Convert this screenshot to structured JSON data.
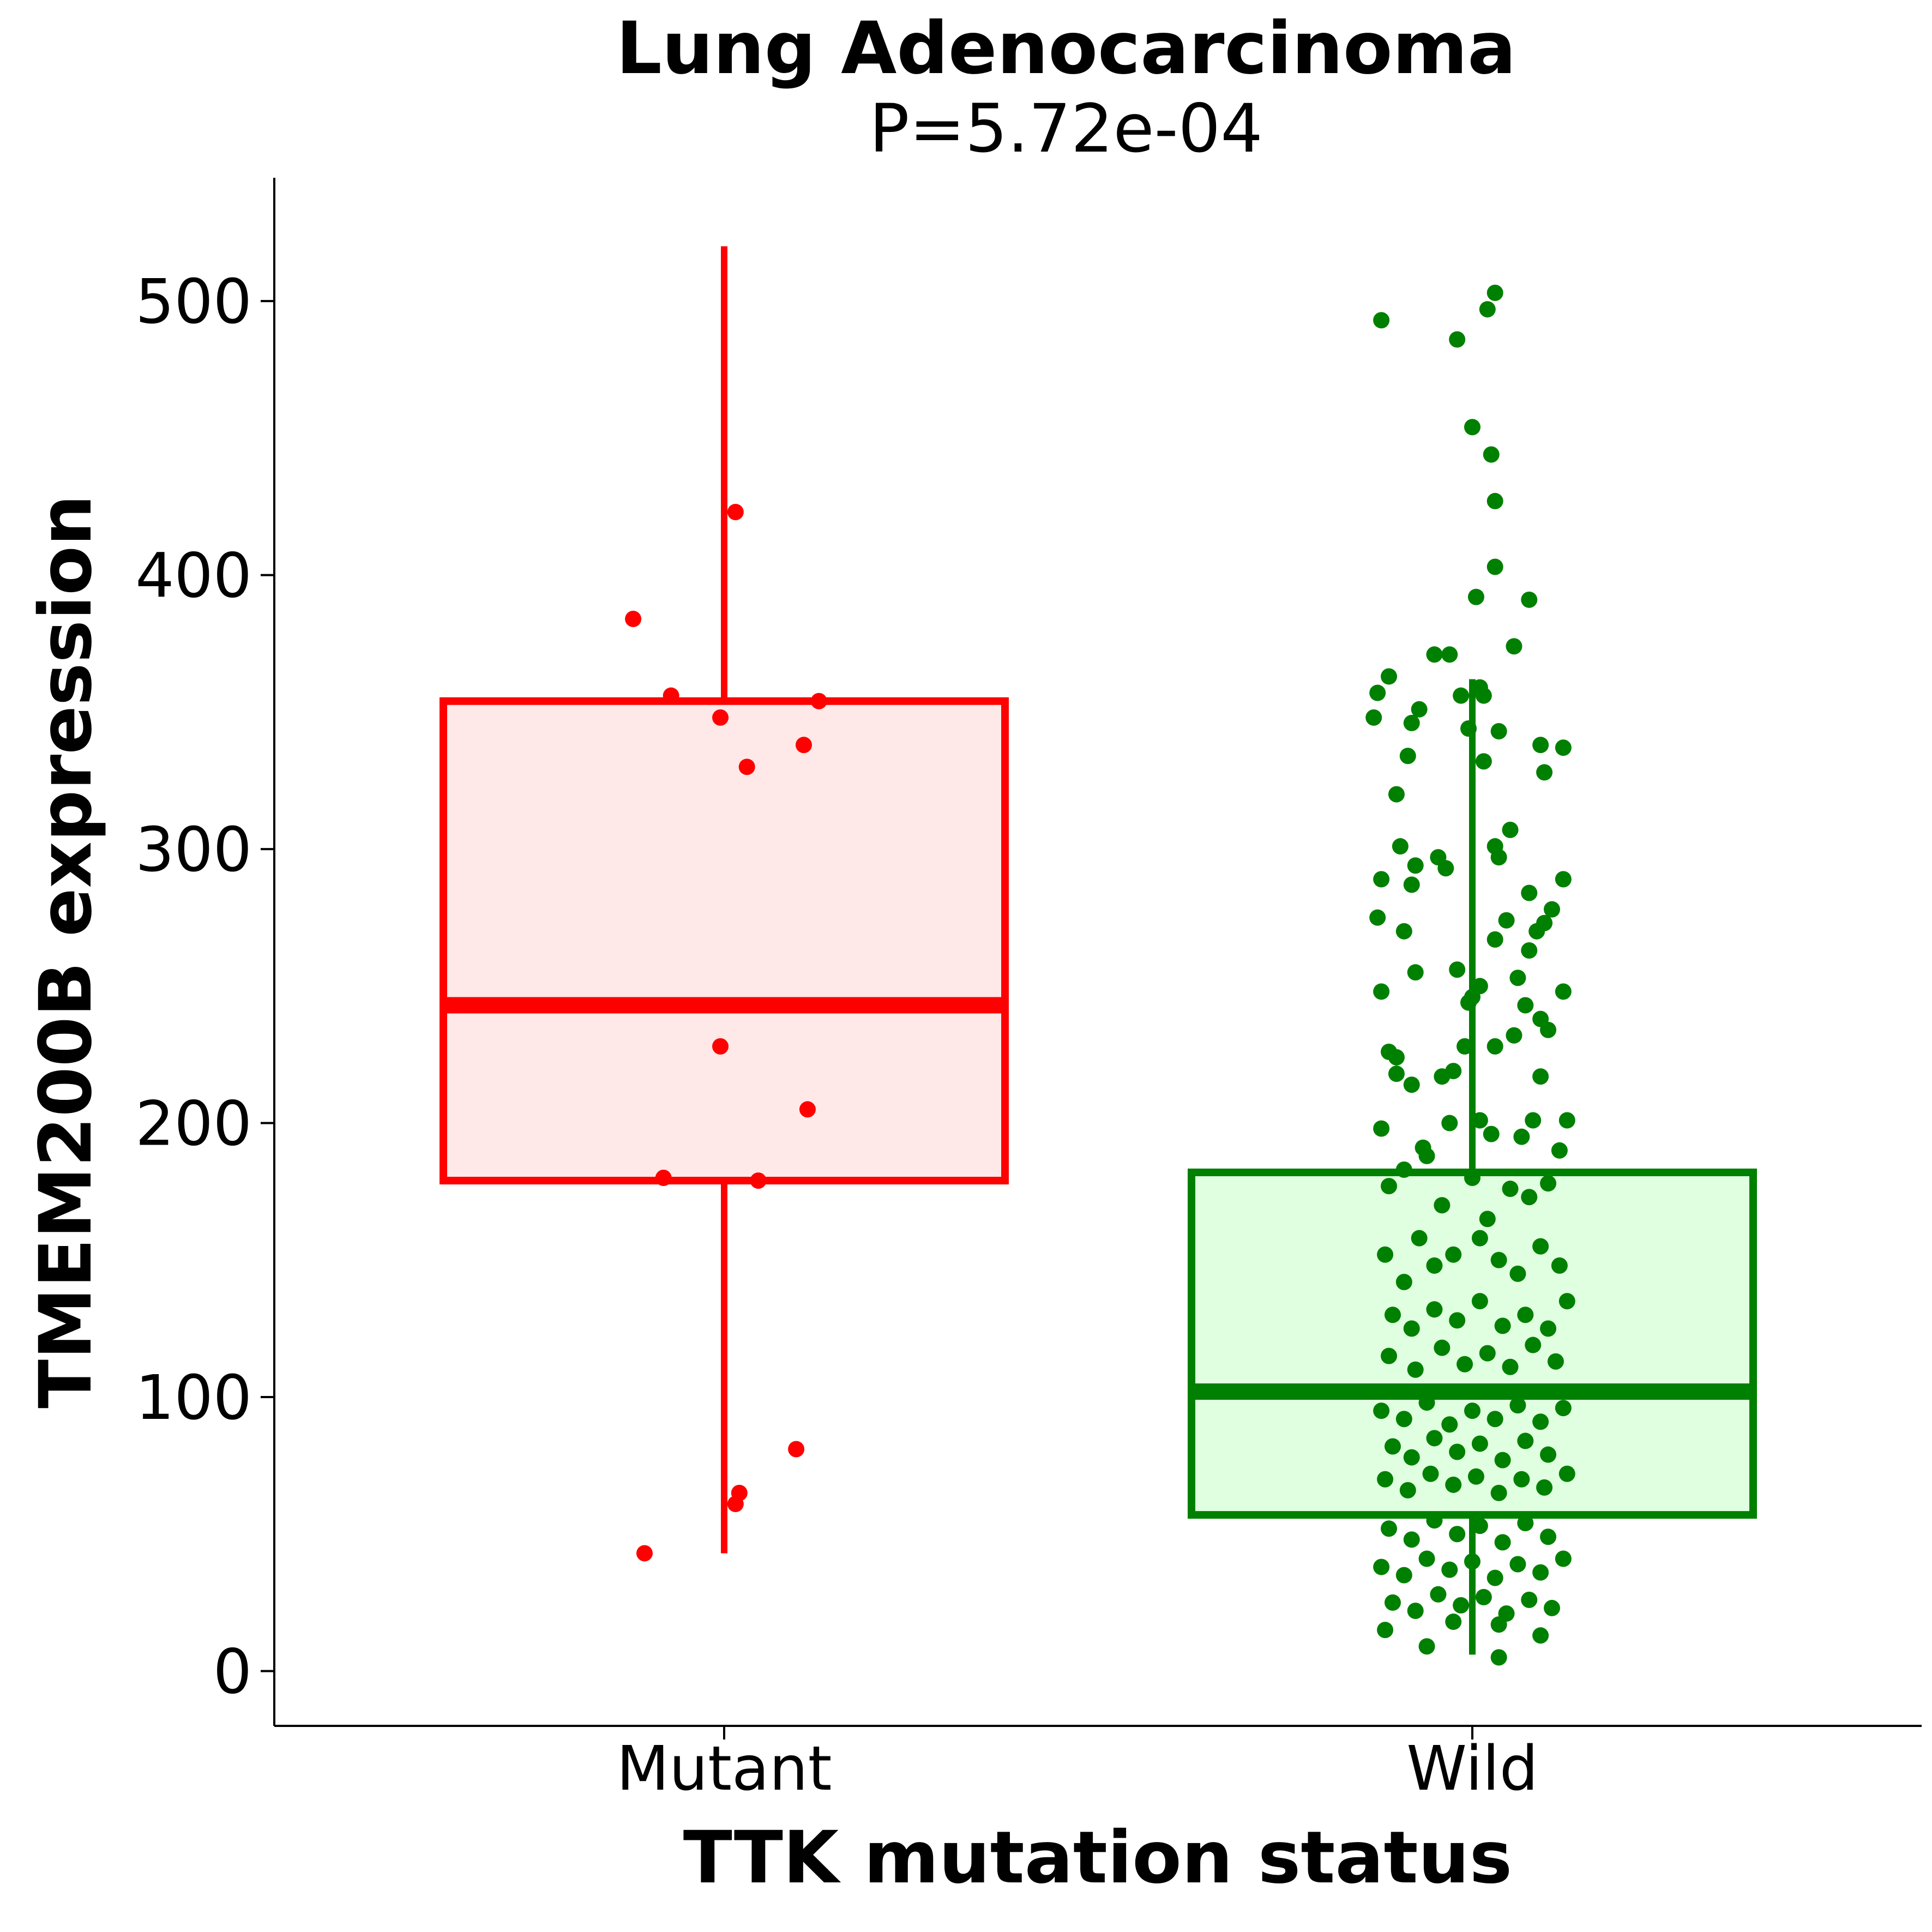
{
  "chart_data": {
    "type": "boxplot",
    "title": "Lung Adenocarcinoma",
    "subtitle": "P=5.72e-04",
    "xlabel": "TTK mutation status",
    "ylabel": "TMEM200B expression",
    "categories": [
      "Mutant",
      "Wild"
    ],
    "ylim": [
      -20,
      545
    ],
    "yticks": [
      0,
      100,
      200,
      300,
      400,
      500
    ],
    "ytick_labels": [
      "0",
      "100",
      "200",
      "300",
      "400",
      "500"
    ],
    "grid": false,
    "legend": "none",
    "colors": {
      "Mutant": {
        "line": "#ff0000",
        "fill": "#ffe8e8"
      },
      "Wild": {
        "line": "#008000",
        "fill": "#e0ffe0"
      },
      "axis": "#000000"
    },
    "boxes": [
      {
        "group": "Mutant",
        "whisker_low": 43,
        "q1": 179,
        "median": 243,
        "q3": 354,
        "whisker_high": 520
      },
      {
        "group": "Wild",
        "whisker_low": 6,
        "q1": 57,
        "median": 102,
        "q3": 182,
        "whisker_high": 362
      }
    ],
    "points": {
      "Mutant": [
        {
          "x": -0.24,
          "y": 384
        },
        {
          "x": -0.14,
          "y": 356
        },
        {
          "x": -0.01,
          "y": 348
        },
        {
          "x": 0.03,
          "y": 423
        },
        {
          "x": 0.06,
          "y": 330
        },
        {
          "x": 0.21,
          "y": 338
        },
        {
          "x": 0.25,
          "y": 354
        },
        {
          "x": -0.01,
          "y": 228
        },
        {
          "x": 0.22,
          "y": 205
        },
        {
          "x": -0.16,
          "y": 180
        },
        {
          "x": 0.09,
          "y": 179
        },
        {
          "x": 0.19,
          "y": 81
        },
        {
          "x": 0.03,
          "y": 61
        },
        {
          "x": 0.04,
          "y": 65
        },
        {
          "x": -0.21,
          "y": 43
        }
      ],
      "Wild": [
        {
          "x": -0.24,
          "y": 493
        },
        {
          "x": -0.04,
          "y": 486
        },
        {
          "x": 0.04,
          "y": 497
        },
        {
          "x": 0.06,
          "y": 503
        },
        {
          "x": 0.0,
          "y": 454
        },
        {
          "x": 0.05,
          "y": 444
        },
        {
          "x": 0.06,
          "y": 427
        },
        {
          "x": 0.06,
          "y": 403
        },
        {
          "x": 0.01,
          "y": 392
        },
        {
          "x": 0.15,
          "y": 391
        },
        {
          "x": 0.11,
          "y": 374
        },
        {
          "x": -0.1,
          "y": 371
        },
        {
          "x": -0.06,
          "y": 371
        },
        {
          "x": -0.22,
          "y": 363
        },
        {
          "x": -0.25,
          "y": 357
        },
        {
          "x": -0.26,
          "y": 348
        },
        {
          "x": -0.16,
          "y": 346
        },
        {
          "x": -0.14,
          "y": 351
        },
        {
          "x": -0.03,
          "y": 356
        },
        {
          "x": 0.02,
          "y": 359
        },
        {
          "x": 0.03,
          "y": 356
        },
        {
          "x": 0.07,
          "y": 343
        },
        {
          "x": -0.01,
          "y": 344
        },
        {
          "x": -0.17,
          "y": 334
        },
        {
          "x": -0.2,
          "y": 320
        },
        {
          "x": 0.03,
          "y": 332
        },
        {
          "x": 0.18,
          "y": 338
        },
        {
          "x": 0.24,
          "y": 337
        },
        {
          "x": 0.19,
          "y": 328
        },
        {
          "x": -0.24,
          "y": 289
        },
        {
          "x": -0.19,
          "y": 301
        },
        {
          "x": -0.15,
          "y": 294
        },
        {
          "x": -0.09,
          "y": 297
        },
        {
          "x": -0.07,
          "y": 293
        },
        {
          "x": -0.16,
          "y": 287
        },
        {
          "x": 0.06,
          "y": 301
        },
        {
          "x": 0.1,
          "y": 307
        },
        {
          "x": 0.07,
          "y": 297
        },
        {
          "x": 0.15,
          "y": 284
        },
        {
          "x": 0.21,
          "y": 278
        },
        {
          "x": 0.24,
          "y": 289
        },
        {
          "x": -0.25,
          "y": 275
        },
        {
          "x": -0.18,
          "y": 270
        },
        {
          "x": 0.06,
          "y": 267
        },
        {
          "x": 0.09,
          "y": 274
        },
        {
          "x": 0.15,
          "y": 263
        },
        {
          "x": 0.17,
          "y": 270
        },
        {
          "x": 0.19,
          "y": 273
        },
        {
          "x": -0.24,
          "y": 248
        },
        {
          "x": -0.15,
          "y": 255
        },
        {
          "x": -0.04,
          "y": 256
        },
        {
          "x": 0.02,
          "y": 250
        },
        {
          "x": 0.0,
          "y": 246
        },
        {
          "x": -0.01,
          "y": 244
        },
        {
          "x": 0.12,
          "y": 253
        },
        {
          "x": 0.14,
          "y": 243
        },
        {
          "x": 0.18,
          "y": 238
        },
        {
          "x": 0.24,
          "y": 248
        },
        {
          "x": -0.22,
          "y": 226
        },
        {
          "x": -0.2,
          "y": 224
        },
        {
          "x": -0.2,
          "y": 218
        },
        {
          "x": -0.16,
          "y": 214
        },
        {
          "x": -0.08,
          "y": 217
        },
        {
          "x": -0.05,
          "y": 219
        },
        {
          "x": -0.02,
          "y": 228
        },
        {
          "x": 0.06,
          "y": 228
        },
        {
          "x": 0.11,
          "y": 232
        },
        {
          "x": 0.2,
          "y": 234
        },
        {
          "x": 0.18,
          "y": 217
        },
        {
          "x": -0.24,
          "y": 198
        },
        {
          "x": -0.13,
          "y": 191
        },
        {
          "x": -0.06,
          "y": 200
        },
        {
          "x": 0.02,
          "y": 201
        },
        {
          "x": 0.05,
          "y": 196
        },
        {
          "x": 0.13,
          "y": 195
        },
        {
          "x": 0.16,
          "y": 201
        },
        {
          "x": 0.23,
          "y": 190
        },
        {
          "x": 0.25,
          "y": 201
        },
        {
          "x": -0.22,
          "y": 177
        },
        {
          "x": -0.18,
          "y": 183
        },
        {
          "x": -0.12,
          "y": 188
        },
        {
          "x": -0.08,
          "y": 170
        },
        {
          "x": 0.0,
          "y": 180
        },
        {
          "x": 0.04,
          "y": 165
        },
        {
          "x": 0.1,
          "y": 176
        },
        {
          "x": 0.15,
          "y": 173
        },
        {
          "x": 0.2,
          "y": 178
        },
        {
          "x": -0.23,
          "y": 152
        },
        {
          "x": -0.18,
          "y": 142
        },
        {
          "x": -0.14,
          "y": 158
        },
        {
          "x": -0.1,
          "y": 148
        },
        {
          "x": -0.05,
          "y": 152
        },
        {
          "x": 0.02,
          "y": 158
        },
        {
          "x": 0.07,
          "y": 150
        },
        {
          "x": 0.12,
          "y": 145
        },
        {
          "x": 0.18,
          "y": 155
        },
        {
          "x": 0.23,
          "y": 148
        },
        {
          "x": -0.21,
          "y": 130
        },
        {
          "x": -0.16,
          "y": 125
        },
        {
          "x": -0.1,
          "y": 132
        },
        {
          "x": -0.04,
          "y": 128
        },
        {
          "x": 0.02,
          "y": 135
        },
        {
          "x": 0.08,
          "y": 126
        },
        {
          "x": 0.14,
          "y": 130
        },
        {
          "x": 0.2,
          "y": 125
        },
        {
          "x": 0.25,
          "y": 135
        },
        {
          "x": -0.22,
          "y": 115
        },
        {
          "x": -0.15,
          "y": 110
        },
        {
          "x": -0.08,
          "y": 118
        },
        {
          "x": -0.02,
          "y": 112
        },
        {
          "x": 0.04,
          "y": 116
        },
        {
          "x": 0.1,
          "y": 111
        },
        {
          "x": 0.16,
          "y": 119
        },
        {
          "x": 0.22,
          "y": 113
        },
        {
          "x": -0.24,
          "y": 95
        },
        {
          "x": -0.18,
          "y": 92
        },
        {
          "x": -0.12,
          "y": 98
        },
        {
          "x": -0.06,
          "y": 90
        },
        {
          "x": 0.0,
          "y": 95
        },
        {
          "x": 0.06,
          "y": 92
        },
        {
          "x": 0.12,
          "y": 97
        },
        {
          "x": 0.18,
          "y": 91
        },
        {
          "x": 0.24,
          "y": 96
        },
        {
          "x": -0.21,
          "y": 82
        },
        {
          "x": -0.16,
          "y": 78
        },
        {
          "x": -0.1,
          "y": 85
        },
        {
          "x": -0.04,
          "y": 80
        },
        {
          "x": 0.02,
          "y": 83
        },
        {
          "x": 0.08,
          "y": 77
        },
        {
          "x": 0.14,
          "y": 84
        },
        {
          "x": 0.2,
          "y": 79
        },
        {
          "x": -0.23,
          "y": 70
        },
        {
          "x": -0.17,
          "y": 66
        },
        {
          "x": -0.11,
          "y": 72
        },
        {
          "x": -0.05,
          "y": 68
        },
        {
          "x": 0.01,
          "y": 71
        },
        {
          "x": 0.07,
          "y": 65
        },
        {
          "x": 0.13,
          "y": 70
        },
        {
          "x": 0.19,
          "y": 67
        },
        {
          "x": 0.25,
          "y": 72
        },
        {
          "x": -0.22,
          "y": 52
        },
        {
          "x": -0.16,
          "y": 48
        },
        {
          "x": -0.1,
          "y": 55
        },
        {
          "x": -0.04,
          "y": 50
        },
        {
          "x": 0.02,
          "y": 53
        },
        {
          "x": 0.08,
          "y": 47
        },
        {
          "x": 0.14,
          "y": 54
        },
        {
          "x": 0.2,
          "y": 49
        },
        {
          "x": -0.24,
          "y": 38
        },
        {
          "x": -0.18,
          "y": 35
        },
        {
          "x": -0.12,
          "y": 41
        },
        {
          "x": -0.06,
          "y": 37
        },
        {
          "x": 0.0,
          "y": 40
        },
        {
          "x": 0.06,
          "y": 34
        },
        {
          "x": 0.12,
          "y": 39
        },
        {
          "x": 0.18,
          "y": 36
        },
        {
          "x": 0.24,
          "y": 41
        },
        {
          "x": -0.21,
          "y": 25
        },
        {
          "x": -0.15,
          "y": 22
        },
        {
          "x": -0.09,
          "y": 28
        },
        {
          "x": -0.03,
          "y": 24
        },
        {
          "x": 0.03,
          "y": 27
        },
        {
          "x": 0.09,
          "y": 21
        },
        {
          "x": 0.15,
          "y": 26
        },
        {
          "x": 0.21,
          "y": 23
        },
        {
          "x": -0.23,
          "y": 15
        },
        {
          "x": -0.12,
          "y": 9
        },
        {
          "x": -0.05,
          "y": 18
        },
        {
          "x": 0.07,
          "y": 17
        },
        {
          "x": 0.18,
          "y": 13
        },
        {
          "x": 0.07,
          "y": 5
        }
      ]
    }
  }
}
